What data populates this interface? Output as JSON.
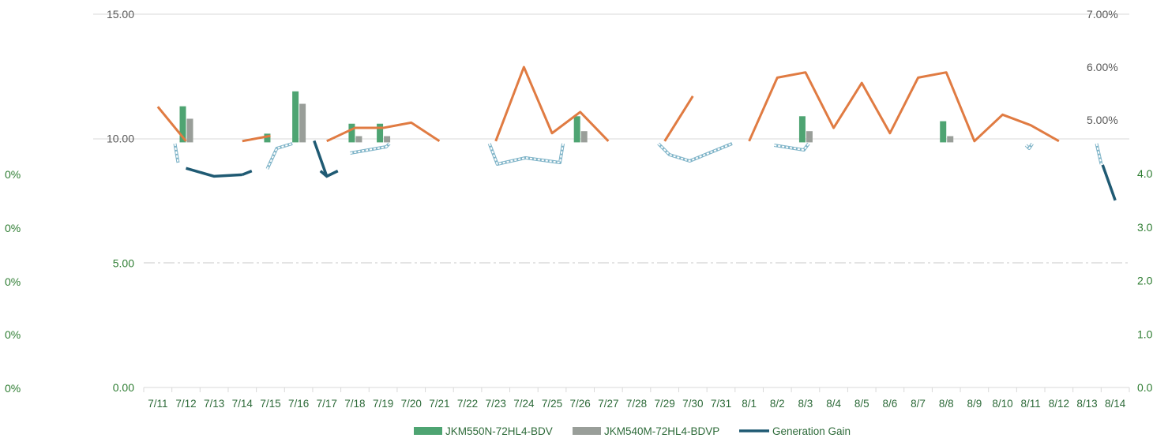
{
  "chart_data": {
    "type": "bar",
    "categories": [
      "7/11",
      "7/12",
      "7/13",
      "7/14",
      "7/15",
      "7/16",
      "7/17",
      "7/18",
      "7/19",
      "7/20",
      "7/21",
      "7/22",
      "7/23",
      "7/24",
      "7/25",
      "7/26",
      "7/27",
      "7/28",
      "7/29",
      "7/30",
      "7/31",
      "8/1",
      "8/2",
      "8/3",
      "8/4",
      "8/5",
      "8/6",
      "8/7",
      "8/8",
      "8/9",
      "8/10",
      "8/11",
      "8/12",
      "8/13",
      "8/14"
    ],
    "left_axis": {
      "ticks": [
        "0.00",
        "5.00",
        "10.00",
        "15.00"
      ],
      "ylim": [
        0,
        15
      ]
    },
    "left_inner_axis": {
      "ticks": [
        "0%",
        "0%",
        "0%",
        "0%",
        "0%"
      ]
    },
    "right_axis": {
      "ticks": [
        "0.0",
        "1.0",
        "2.0",
        "3.0",
        "4.0"
      ],
      "ylim": [
        0,
        4
      ]
    },
    "right_upper_axis": {
      "ticks": [
        "5.00%",
        "6.00%",
        "7.00%"
      ],
      "ylim": [
        4.6,
        7.0
      ]
    },
    "series": [
      {
        "name": "JKM550N-72HL4-BDV",
        "type": "bar",
        "color": "#4ea472",
        "values": [
          null,
          11.3,
          null,
          null,
          10.2,
          11.9,
          null,
          10.6,
          10.6,
          null,
          null,
          null,
          null,
          null,
          null,
          10.9,
          null,
          null,
          null,
          null,
          null,
          null,
          null,
          10.9,
          null,
          null,
          null,
          null,
          10.7,
          null,
          null,
          null,
          null,
          null,
          null
        ]
      },
      {
        "name": "JKM540M-72HL4-BDVP",
        "type": "bar",
        "color": "#999e99",
        "values": [
          null,
          10.8,
          null,
          null,
          null,
          11.4,
          null,
          10.1,
          10.1,
          null,
          null,
          null,
          null,
          null,
          null,
          10.3,
          null,
          null,
          null,
          null,
          null,
          null,
          null,
          10.3,
          null,
          null,
          null,
          null,
          10.1,
          null,
          null,
          null,
          null,
          null,
          null
        ]
      },
      {
        "name": "",
        "type": "line",
        "axis": "right_upper",
        "color": "#e07b42",
        "values": [
          5.25,
          4.6,
          null,
          4.6,
          4.7,
          null,
          4.6,
          4.85,
          4.85,
          4.95,
          4.6,
          null,
          4.6,
          6.0,
          4.75,
          5.15,
          4.6,
          null,
          4.6,
          5.45,
          null,
          4.6,
          5.8,
          5.9,
          4.85,
          5.7,
          4.75,
          5.8,
          5.9,
          4.6,
          5.1,
          4.9,
          4.6,
          null,
          null
        ]
      },
      {
        "name": "Generation Gain",
        "type": "line",
        "axis": "right",
        "color": "#1f5a73",
        "values": [
          null,
          4.1,
          3.95,
          3.98,
          null,
          null,
          3.95,
          null,
          null,
          null,
          null,
          null,
          null,
          null,
          null,
          null,
          null,
          null,
          null,
          null,
          null,
          null,
          null,
          null,
          null,
          null,
          null,
          null,
          null,
          null,
          null,
          null,
          null,
          null,
          3.5
        ]
      }
    ],
    "legend": [
      "JKM550N-72HL4-BDV",
      "JKM540M-72HL4-BDVP",
      "Generation Gain"
    ],
    "legend_position": "bottom",
    "grid": true
  }
}
